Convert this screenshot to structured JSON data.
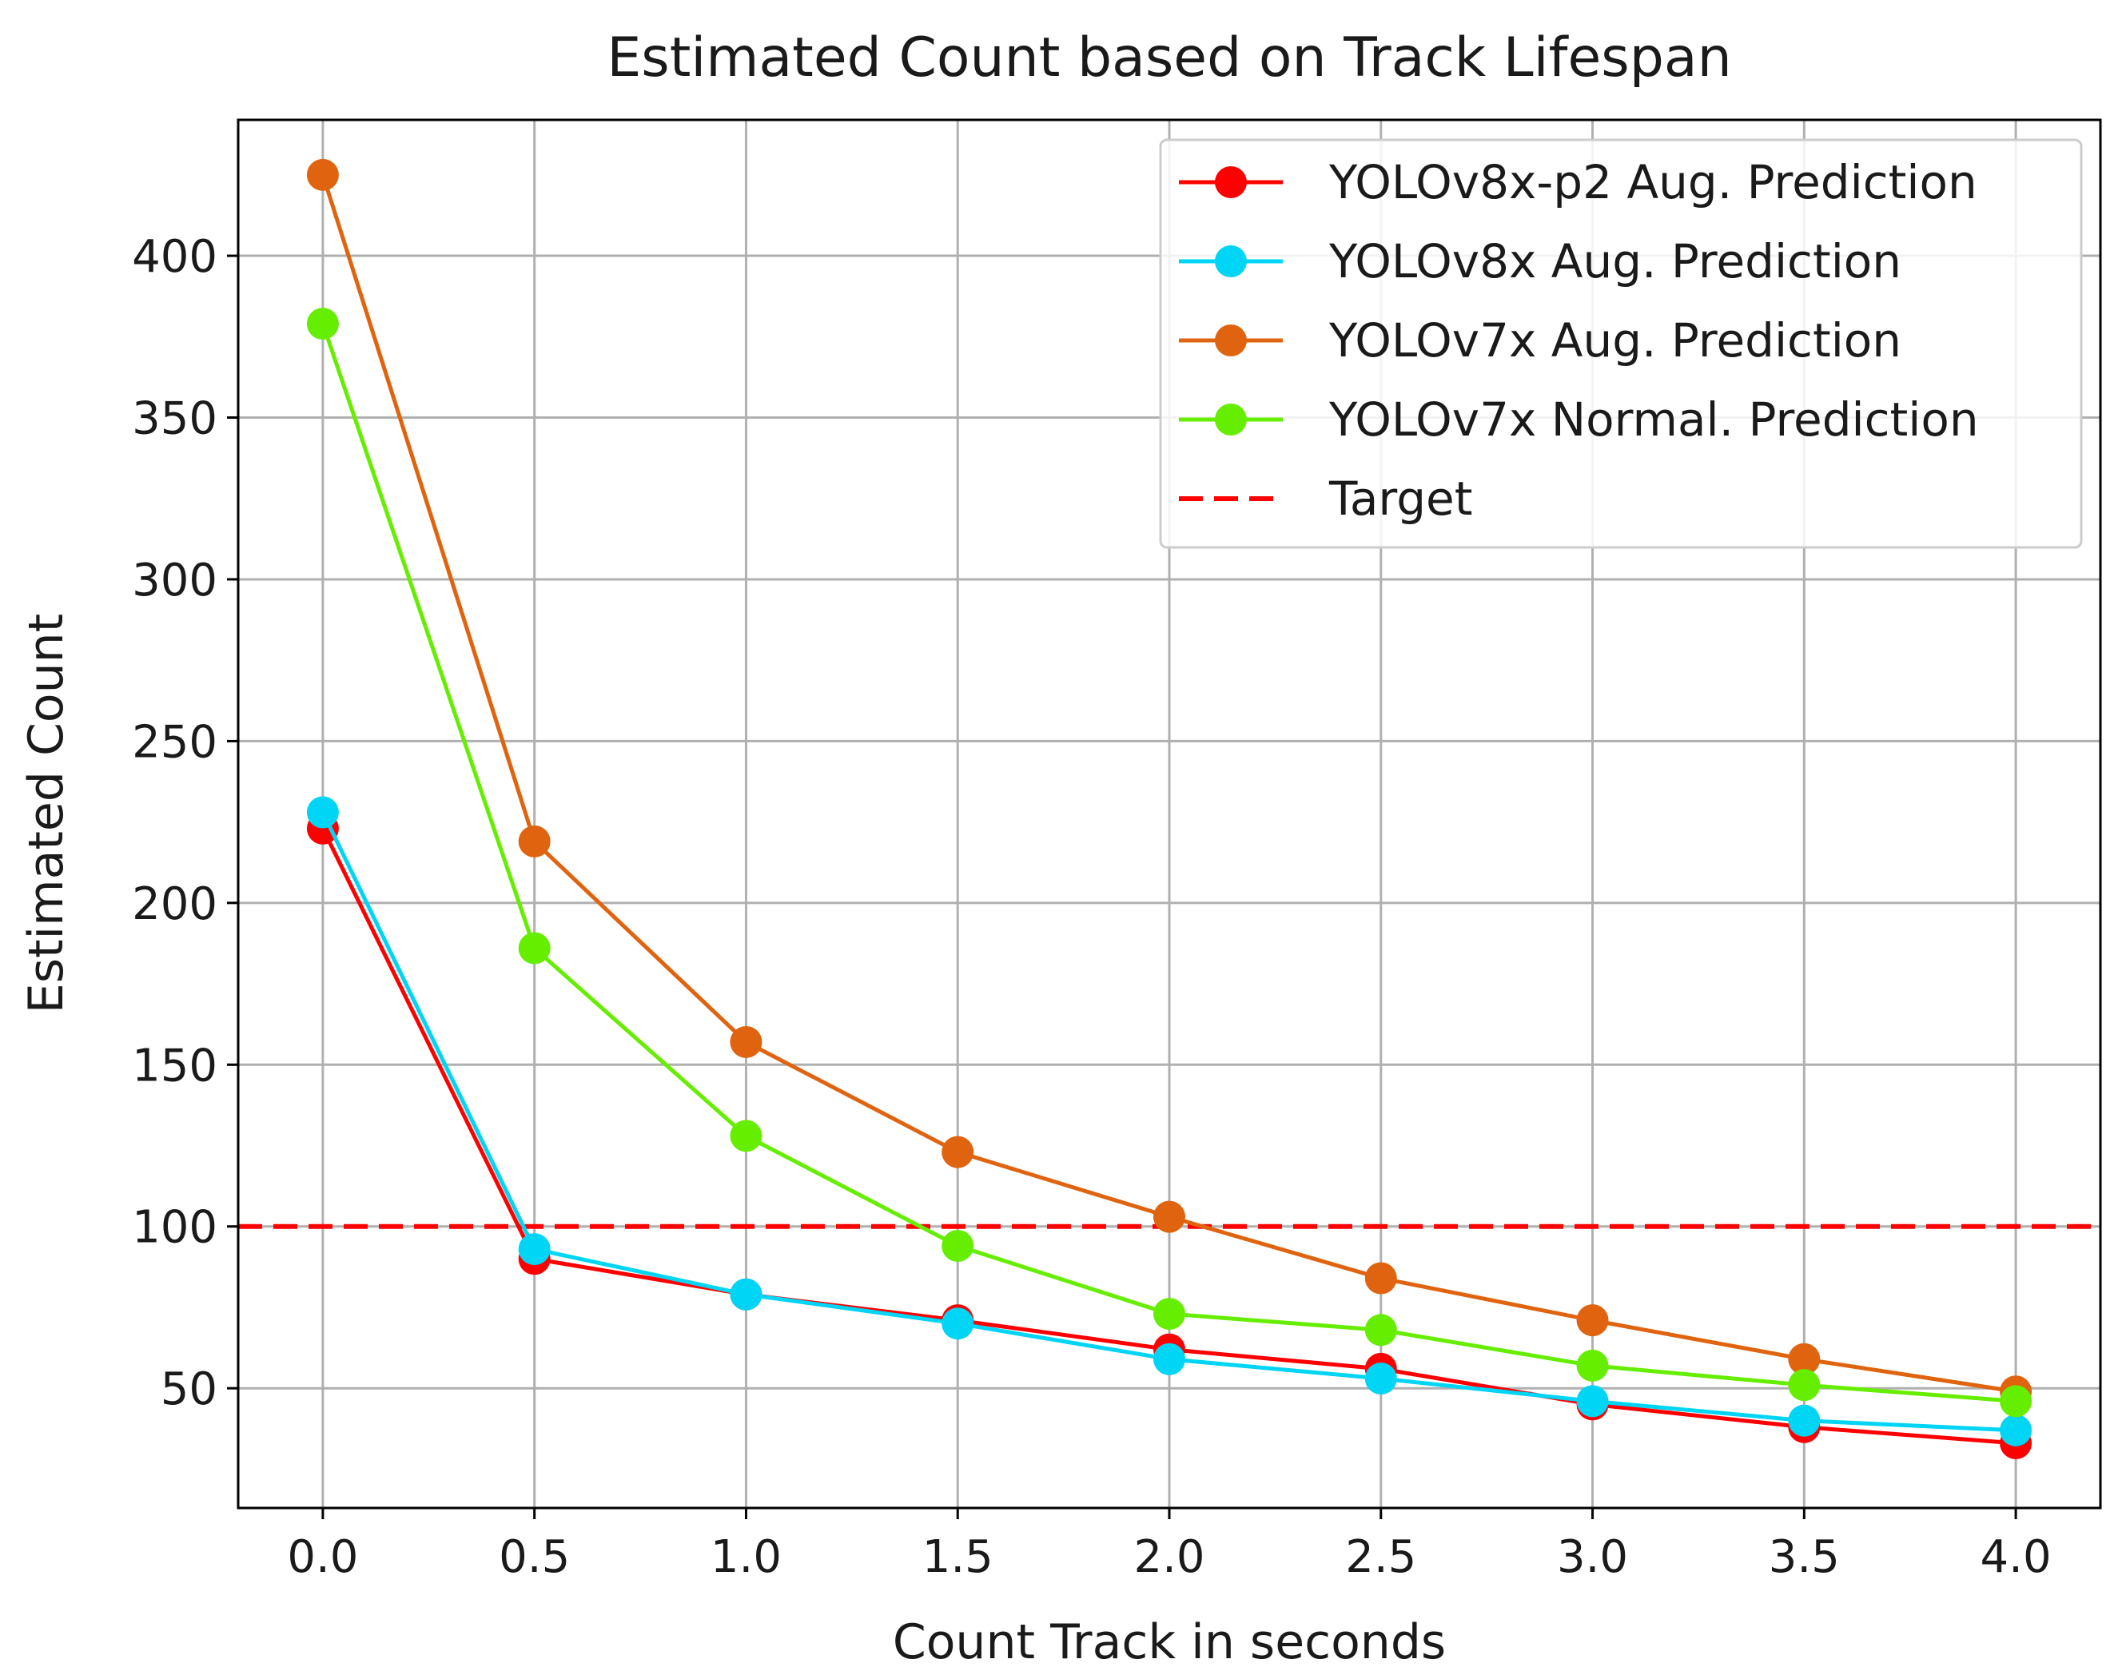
{
  "chart_data": {
    "type": "line",
    "title": "Estimated Count based on Track Lifespan",
    "xlabel": "Count Track in seconds",
    "ylabel": "Estimated Count",
    "x": [
      0.0,
      0.5,
      1.0,
      1.5,
      2.0,
      2.5,
      3.0,
      3.5,
      4.0
    ],
    "x_tick_labels": [
      "0.0",
      "0.5",
      "1.0",
      "1.5",
      "2.0",
      "2.5",
      "3.0",
      "3.5",
      "4.0"
    ],
    "xlim": [
      -0.2,
      4.2
    ],
    "y_ticks": [
      50,
      100,
      150,
      200,
      250,
      300,
      350,
      400
    ],
    "y_tick_labels": [
      "50",
      "100",
      "150",
      "200",
      "250",
      "300",
      "350",
      "400"
    ],
    "ylim": [
      13,
      442
    ],
    "grid": true,
    "legend_position": "top-right",
    "series": [
      {
        "name": "YOLOv8x-p2 Aug. Prediction",
        "color": "#ff0000",
        "values": [
          223,
          90,
          79,
          71,
          62,
          56,
          45,
          38,
          33
        ]
      },
      {
        "name": "YOLOv8x Aug. Prediction",
        "color": "#00d5f5",
        "values": [
          228,
          93,
          79,
          70,
          59,
          53,
          46,
          40,
          37
        ]
      },
      {
        "name": "YOLOv7x Aug. Prediction",
        "color": "#e0640f",
        "values": [
          425,
          219,
          157,
          123,
          103,
          84,
          71,
          59,
          49
        ]
      },
      {
        "name": "YOLOv7x Normal. Prediction",
        "color": "#66ee00",
        "values": [
          379,
          186,
          128,
          94,
          73,
          68,
          57,
          51,
          46
        ]
      }
    ],
    "reference_line": {
      "name": "Target",
      "value": 100,
      "color": "#ff0000",
      "style": "dashed"
    }
  }
}
